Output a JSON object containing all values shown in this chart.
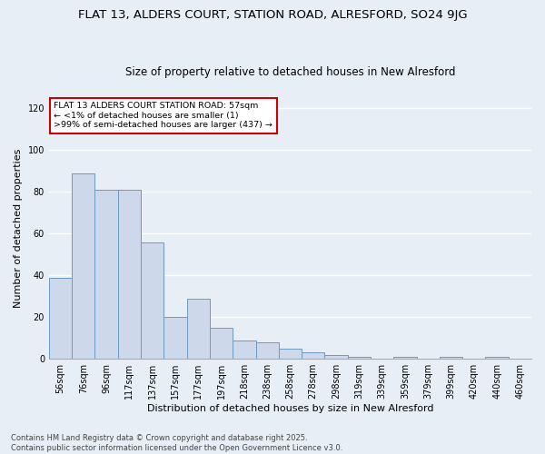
{
  "title": "FLAT 13, ALDERS COURT, STATION ROAD, ALRESFORD, SO24 9JG",
  "subtitle": "Size of property relative to detached houses in New Alresford",
  "xlabel": "Distribution of detached houses by size in New Alresford",
  "ylabel": "Number of detached properties",
  "categories": [
    "56sqm",
    "76sqm",
    "96sqm",
    "117sqm",
    "137sqm",
    "157sqm",
    "177sqm",
    "197sqm",
    "218sqm",
    "238sqm",
    "258sqm",
    "278sqm",
    "298sqm",
    "319sqm",
    "339sqm",
    "359sqm",
    "379sqm",
    "399sqm",
    "420sqm",
    "440sqm",
    "460sqm"
  ],
  "values": [
    39,
    89,
    81,
    81,
    56,
    20,
    29,
    15,
    9,
    8,
    5,
    3,
    2,
    1,
    0,
    1,
    0,
    1,
    0,
    1,
    0
  ],
  "bar_color": "#cdd9ea",
  "bar_edge_color": "#7099c0",
  "annotation_box_color": "#ffffff",
  "annotation_border_color": "#cc0000",
  "annotation_text_line1": "FLAT 13 ALDERS COURT STATION ROAD: 57sqm",
  "annotation_text_line2": "← <1% of detached houses are smaller (1)",
  "annotation_text_line3": ">99% of semi-detached houses are larger (437) →",
  "ylim": [
    0,
    125
  ],
  "yticks": [
    0,
    20,
    40,
    60,
    80,
    100,
    120
  ],
  "background_color": "#e8eef5",
  "plot_bg_color": "#e8eef5",
  "footer_line1": "Contains HM Land Registry data © Crown copyright and database right 2025.",
  "footer_line2": "Contains public sector information licensed under the Open Government Licence v3.0.",
  "grid_color": "#ffffff",
  "title_fontsize": 9.5,
  "subtitle_fontsize": 8.5,
  "annotation_fontsize": 6.8,
  "axis_label_fontsize": 8,
  "tick_fontsize": 7,
  "footer_fontsize": 6
}
